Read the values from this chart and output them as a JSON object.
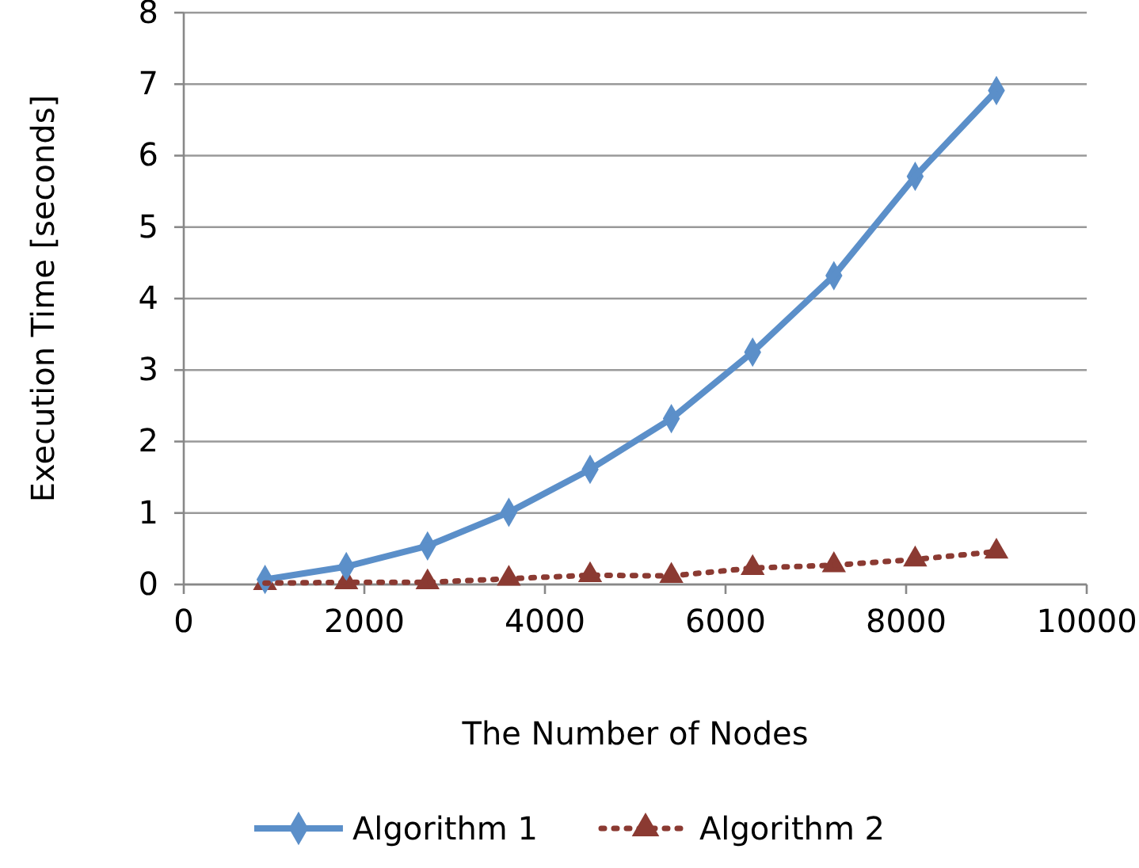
{
  "chart_data": {
    "type": "line",
    "xlabel": "The Number of Nodes",
    "ylabel": "Execution Time [seconds]",
    "x": [
      900,
      1800,
      2700,
      3600,
      4500,
      5400,
      6300,
      7200,
      8100,
      9000
    ],
    "series": [
      {
        "name": "Algorithm 1",
        "color": "#5b8fc9",
        "marker": "diamond",
        "line_style": "solid",
        "values": [
          0.07,
          0.25,
          0.54,
          1.01,
          1.61,
          2.32,
          3.25,
          4.32,
          5.71,
          6.91
        ]
      },
      {
        "name": "Algorithm 2",
        "color": "#8b3a32",
        "marker": "triangle",
        "line_style": "dotted",
        "values": [
          0.02,
          0.03,
          0.03,
          0.08,
          0.13,
          0.12,
          0.23,
          0.27,
          0.35,
          0.46
        ]
      }
    ],
    "xlim": [
      0,
      10000
    ],
    "xticks": [
      0,
      2000,
      4000,
      6000,
      8000,
      10000
    ],
    "ylim": [
      0,
      8
    ],
    "yticks": [
      0,
      1,
      2,
      3,
      4,
      5,
      6,
      7,
      8
    ],
    "grid": "y",
    "legend": "bottom"
  }
}
